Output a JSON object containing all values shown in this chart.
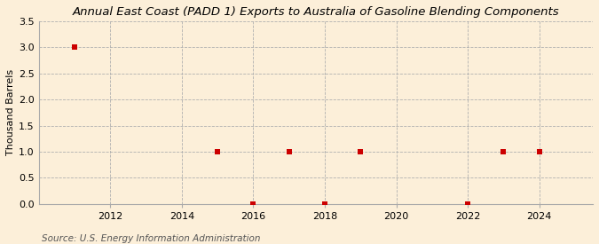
{
  "title": "Annual East Coast (PADD 1) Exports to Australia of Gasoline Blending Components",
  "ylabel": "Thousand Barrels",
  "source": "Source: U.S. Energy Information Administration",
  "background_color": "#fcefd9",
  "data_points": [
    {
      "year": 2011,
      "value": 3.0
    },
    {
      "year": 2015,
      "value": 1.0
    },
    {
      "year": 2016,
      "value": 0.0
    },
    {
      "year": 2017,
      "value": 1.0
    },
    {
      "year": 2018,
      "value": 0.0
    },
    {
      "year": 2019,
      "value": 1.0
    },
    {
      "year": 2022,
      "value": 0.0
    },
    {
      "year": 2023,
      "value": 1.0
    },
    {
      "year": 2024,
      "value": 1.0
    }
  ],
  "marker_color": "#cc0000",
  "marker_size": 5,
  "xlim": [
    2010.0,
    2025.5
  ],
  "ylim": [
    0.0,
    3.5
  ],
  "yticks": [
    0.0,
    0.5,
    1.0,
    1.5,
    2.0,
    2.5,
    3.0,
    3.5
  ],
  "xticks": [
    2012,
    2014,
    2016,
    2018,
    2020,
    2022,
    2024
  ],
  "grid_color": "#b0b0b0",
  "grid_style": "--",
  "title_fontsize": 9.5,
  "label_fontsize": 8,
  "tick_fontsize": 8,
  "source_fontsize": 7.5
}
